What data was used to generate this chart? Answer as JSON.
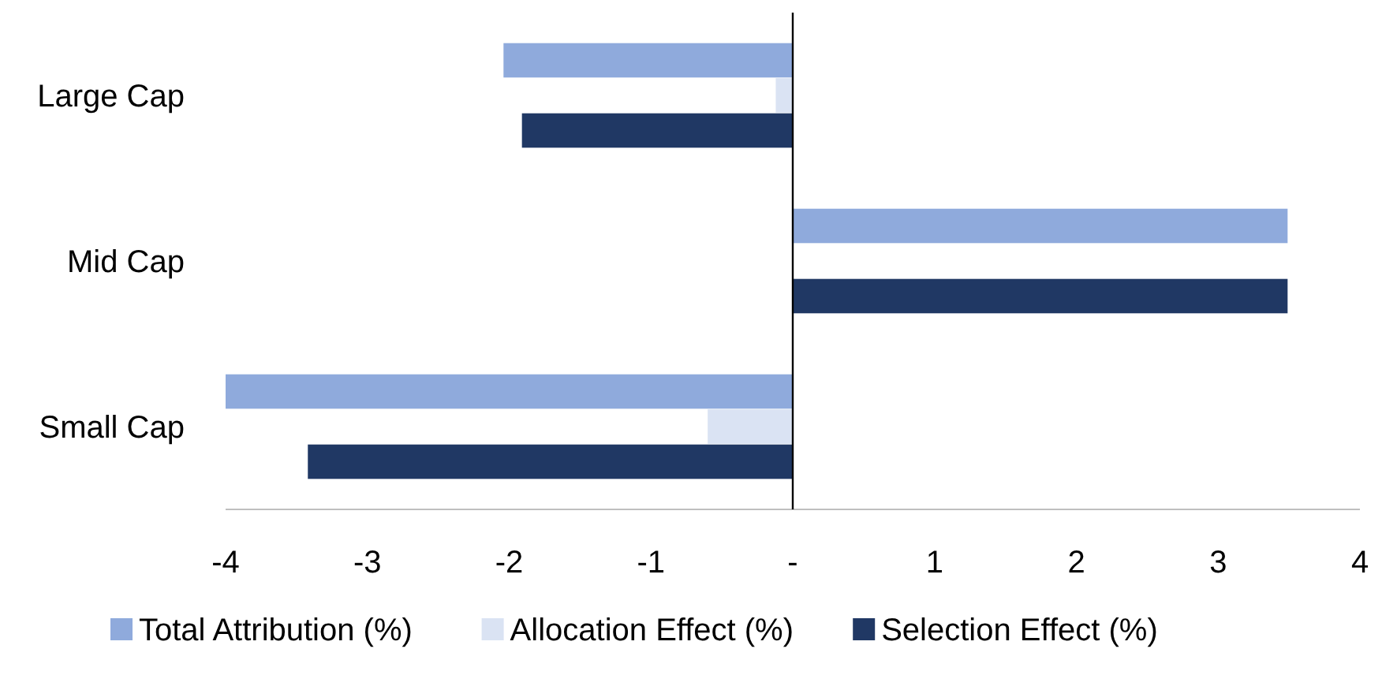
{
  "chart_data": {
    "type": "bar",
    "orientation": "horizontal",
    "categories": [
      "Large Cap",
      "Mid Cap",
      "Small Cap"
    ],
    "series": [
      {
        "name": "Total Attribution (%)",
        "color": "#8faadc",
        "values": [
          -2.04,
          3.49,
          -4
        ]
      },
      {
        "name": "Allocation Effect (%)",
        "color": "#dae3f3",
        "values": [
          -0.12,
          0,
          -0.6
        ]
      },
      {
        "name": "Selection Effect (%)",
        "color": "#203864",
        "values": [
          -1.91,
          3.49,
          -3.42
        ]
      }
    ],
    "xlim": [
      -4,
      4
    ],
    "xticks": [
      -4,
      -3,
      -2,
      -1,
      {
        "value": 0,
        "label": "-"
      },
      1,
      2,
      3,
      4
    ],
    "legend": "bottom"
  }
}
